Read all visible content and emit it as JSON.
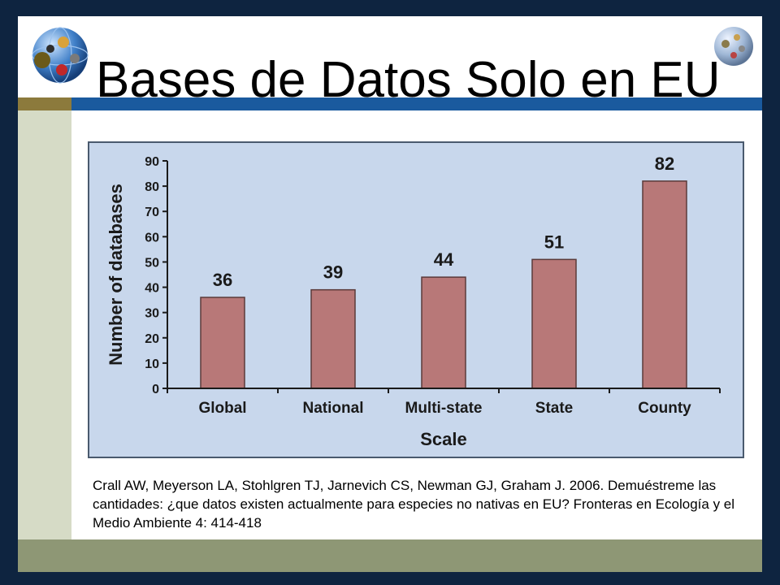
{
  "slide": {
    "title": "Bases de Datos Solo en EU",
    "citation": "Crall AW, Meyerson LA, Stohlgren TJ, Jarnevich CS, Newman GJ, Graham J. 2006. Demuéstreme las cantidades: ¿que datos existen actualmente para especies no nativas en EU?  Fronteras en Ecología y el Medio Ambiente 4: 414-418",
    "logo_icon": "globe-icon"
  },
  "colors": {
    "bar": "#b87878",
    "chart_bg": "#c8d7ec",
    "band_blue": "#1a5a9e",
    "band_olive": "#8c7a3c",
    "footer": "#8e9775"
  },
  "chart_data": {
    "type": "bar",
    "categories": [
      "Global",
      "National",
      "Multi-state",
      "State",
      "County"
    ],
    "values": [
      36,
      39,
      44,
      51,
      82
    ],
    "value_labels": [
      "36",
      "39",
      "44",
      "51",
      "82"
    ],
    "yticks": [
      "0",
      "10",
      "20",
      "30",
      "40",
      "50",
      "60",
      "70",
      "80",
      "90"
    ],
    "xlabel": "Scale",
    "ylabel": "Number of databases",
    "ylim": [
      0,
      90
    ],
    "grid": false
  }
}
